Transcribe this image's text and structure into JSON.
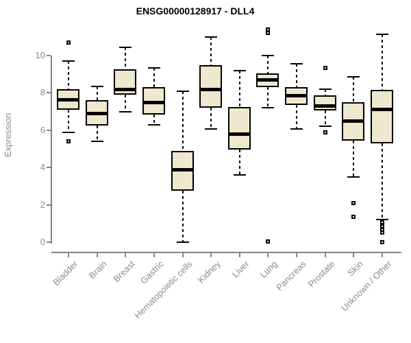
{
  "title": "ENSG00000128917 - DLL4",
  "colors": {
    "background": "#FFFFFF",
    "box_fill": "#EDE8CE",
    "box_stroke": "#000000",
    "axis_line": "#848484",
    "axis_text": "#8A8A8A",
    "title_text": "#000000"
  },
  "chart_data": {
    "type": "boxplot",
    "title": "ENSG00000128917 - DLL4",
    "xlabel": "",
    "ylabel": "Expression",
    "yticks": [
      0,
      2,
      4,
      6,
      8,
      10
    ],
    "ylim": [
      0,
      11.5
    ],
    "grid": false,
    "legend": "none",
    "categories": [
      "Bladder",
      "Brain",
      "Breast",
      "Gastric",
      "Hematopoietic cells",
      "Kidney",
      "Liver",
      "Lung",
      "Pancreas",
      "Prostate",
      "Skin",
      "Unknown / Other"
    ],
    "series": [
      {
        "name": "Bladder",
        "whisker_low": 5.9,
        "q1": 7.1,
        "median": 7.65,
        "q3": 8.2,
        "whisker_high": 9.7,
        "outliers": [
          10.7,
          5.4
        ]
      },
      {
        "name": "Brain",
        "whisker_low": 5.4,
        "q1": 6.25,
        "median": 6.9,
        "q3": 7.6,
        "whisker_high": 8.35,
        "outliers": []
      },
      {
        "name": "Breast",
        "whisker_low": 7.0,
        "q1": 7.9,
        "median": 8.2,
        "q3": 9.25,
        "whisker_high": 10.45,
        "outliers": []
      },
      {
        "name": "Gastric",
        "whisker_low": 6.3,
        "q1": 6.85,
        "median": 7.5,
        "q3": 8.3,
        "whisker_high": 9.35,
        "outliers": []
      },
      {
        "name": "Hematopoietic cells",
        "whisker_low": 0.0,
        "q1": 2.75,
        "median": 3.9,
        "q3": 4.9,
        "whisker_high": 8.1,
        "outliers": []
      },
      {
        "name": "Kidney",
        "whisker_low": 6.05,
        "q1": 7.2,
        "median": 8.2,
        "q3": 9.5,
        "whisker_high": 11.0,
        "outliers": []
      },
      {
        "name": "Liver",
        "whisker_low": 3.6,
        "q1": 4.95,
        "median": 5.8,
        "q3": 7.25,
        "whisker_high": 9.2,
        "outliers": []
      },
      {
        "name": "Lung",
        "whisker_low": 7.2,
        "q1": 8.3,
        "median": 8.7,
        "q3": 9.05,
        "whisker_high": 10.0,
        "outliers": [
          11.4,
          11.2,
          0.05
        ]
      },
      {
        "name": "Pancreas",
        "whisker_low": 6.05,
        "q1": 7.35,
        "median": 7.85,
        "q3": 8.3,
        "whisker_high": 9.55,
        "outliers": []
      },
      {
        "name": "Prostate",
        "whisker_low": 6.2,
        "q1": 7.05,
        "median": 7.3,
        "q3": 7.85,
        "whisker_high": 8.2,
        "outliers": [
          9.35,
          5.9
        ]
      },
      {
        "name": "Skin",
        "whisker_low": 3.5,
        "q1": 5.45,
        "median": 6.5,
        "q3": 7.5,
        "whisker_high": 8.85,
        "outliers": [
          2.1,
          1.35
        ]
      },
      {
        "name": "Unknown / Other",
        "whisker_low": 1.2,
        "q1": 5.3,
        "median": 7.15,
        "q3": 8.15,
        "whisker_high": 11.15,
        "outliers": [
          1.05,
          0.85,
          0.65,
          0.5,
          0.0
        ]
      }
    ]
  }
}
